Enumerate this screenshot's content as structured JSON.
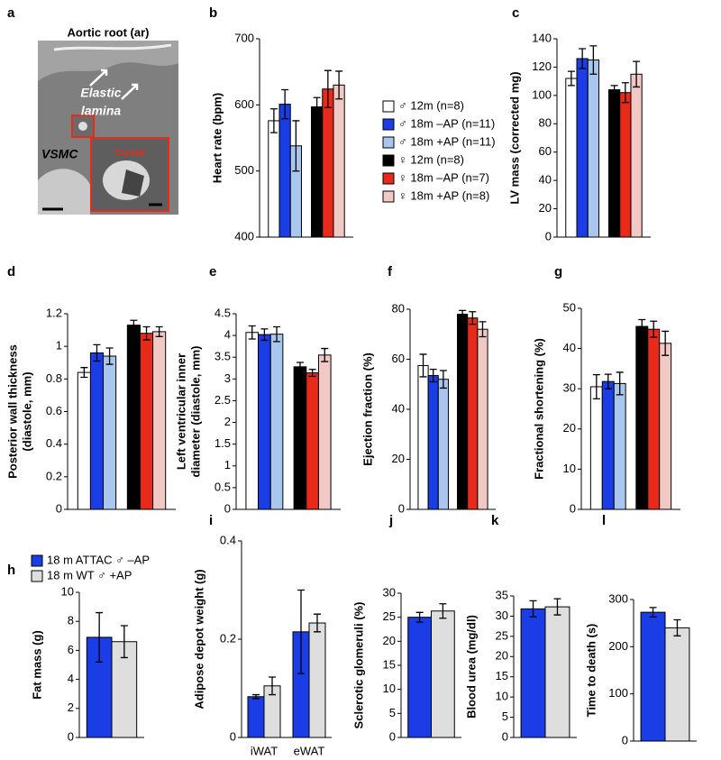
{
  "image_panel": {
    "label": "a",
    "title": "Aortic root (ar)",
    "lamina": [
      "Elastic",
      "lamina"
    ],
    "cell": "VSMC",
    "inset": "Crystal"
  },
  "chart_data": [
    {
      "type": "bar",
      "label": "b",
      "ylabel": "Heart rate (bpm)",
      "ylim": [
        400,
        700
      ],
      "yticks": [
        400,
        500,
        600,
        700
      ],
      "legend": "right",
      "series": [
        {
          "name": "♂ 12m (n=8)",
          "color": "#ffffff",
          "values": [
            576
          ],
          "errors": [
            18
          ]
        },
        {
          "name": "♂ 18m –AP (n=11)",
          "color": "#1a3de6",
          "values": [
            601
          ],
          "errors": [
            22
          ]
        },
        {
          "name": "♂ 18m +AP (n=11)",
          "color": "#a9c6ee",
          "values": [
            538
          ],
          "errors": [
            38
          ]
        },
        {
          "name": "♀ 12m (n=8)",
          "color": "#000000",
          "values": [
            597
          ],
          "errors": [
            14
          ]
        },
        {
          "name": "♀ 18m –AP (n=7)",
          "color": "#e82a1a",
          "values": [
            624
          ],
          "errors": [
            28
          ]
        },
        {
          "name": "♀ 18m +AP (n=8)",
          "color": "#f0c8c4",
          "values": [
            630
          ],
          "errors": [
            21
          ]
        }
      ]
    },
    {
      "type": "bar",
      "label": "c",
      "ylabel": "LV mass (corrected mg)",
      "ylim": [
        0,
        140
      ],
      "yticks": [
        0,
        20,
        40,
        60,
        80,
        100,
        120,
        140
      ],
      "series": [
        {
          "color": "#ffffff",
          "values": [
            112
          ],
          "errors": [
            5
          ]
        },
        {
          "color": "#1a3de6",
          "values": [
            126
          ],
          "errors": [
            7
          ]
        },
        {
          "color": "#a9c6ee",
          "values": [
            125
          ],
          "errors": [
            10
          ]
        },
        {
          "color": "#000000",
          "values": [
            104
          ],
          "errors": [
            3
          ]
        },
        {
          "color": "#e82a1a",
          "values": [
            102
          ],
          "errors": [
            7
          ]
        },
        {
          "color": "#f0c8c4",
          "values": [
            115
          ],
          "errors": [
            9
          ]
        }
      ]
    },
    {
      "type": "bar",
      "label": "d",
      "ylabel": [
        "Posterior wall thickness",
        "(diastole, mm)"
      ],
      "ylim": [
        0,
        1.2
      ],
      "yticks": [
        0,
        0.2,
        0.4,
        0.6,
        0.8,
        1,
        1.2
      ],
      "series": [
        {
          "color": "#ffffff",
          "values": [
            0.84
          ],
          "errors": [
            0.03
          ]
        },
        {
          "color": "#1a3de6",
          "values": [
            0.96
          ],
          "errors": [
            0.05
          ]
        },
        {
          "color": "#a9c6ee",
          "values": [
            0.94
          ],
          "errors": [
            0.05
          ]
        },
        {
          "color": "#000000",
          "values": [
            1.13
          ],
          "errors": [
            0.03
          ]
        },
        {
          "color": "#e82a1a",
          "values": [
            1.08
          ],
          "errors": [
            0.04
          ]
        },
        {
          "color": "#f0c8c4",
          "values": [
            1.09
          ],
          "errors": [
            0.03
          ]
        }
      ]
    },
    {
      "type": "bar",
      "label": "e",
      "ylabel": [
        "Left ventricular inner",
        "diameter (diastole, mm)"
      ],
      "ylim": [
        0,
        4.5
      ],
      "yticks": [
        0,
        0.5,
        1,
        1.5,
        2,
        2.5,
        3,
        3.5,
        4,
        4.5
      ],
      "series": [
        {
          "color": "#ffffff",
          "values": [
            4.07
          ],
          "errors": [
            0.15
          ]
        },
        {
          "color": "#1a3de6",
          "values": [
            4.02
          ],
          "errors": [
            0.13
          ]
        },
        {
          "color": "#a9c6ee",
          "values": [
            4.03
          ],
          "errors": [
            0.17
          ]
        },
        {
          "color": "#000000",
          "values": [
            3.28
          ],
          "errors": [
            0.1
          ]
        },
        {
          "color": "#e82a1a",
          "values": [
            3.14
          ],
          "errors": [
            0.08
          ]
        },
        {
          "color": "#f0c8c4",
          "values": [
            3.55
          ],
          "errors": [
            0.15
          ]
        }
      ]
    },
    {
      "type": "bar",
      "label": "f",
      "ylabel": "Ejection fraction (%)",
      "ylim": [
        0,
        80
      ],
      "yticks": [
        0,
        20,
        40,
        60,
        80
      ],
      "series": [
        {
          "color": "#ffffff",
          "values": [
            57.5
          ],
          "errors": [
            4.5
          ]
        },
        {
          "color": "#1a3de6",
          "values": [
            53.5
          ],
          "errors": [
            2.5
          ]
        },
        {
          "color": "#a9c6ee",
          "values": [
            52
          ],
          "errors": [
            3.5
          ]
        },
        {
          "color": "#000000",
          "values": [
            78
          ],
          "errors": [
            1.5
          ]
        },
        {
          "color": "#e82a1a",
          "values": [
            76.5
          ],
          "errors": [
            2.5
          ]
        },
        {
          "color": "#f0c8c4",
          "values": [
            72
          ],
          "errors": [
            3
          ]
        }
      ]
    },
    {
      "type": "bar",
      "label": "g",
      "ylabel": "Fractional shortening (%)",
      "ylim": [
        0,
        50
      ],
      "yticks": [
        0,
        10,
        20,
        30,
        40,
        50
      ],
      "series": [
        {
          "color": "#ffffff",
          "values": [
            30.5
          ],
          "errors": [
            3
          ]
        },
        {
          "color": "#1a3de6",
          "values": [
            31.8
          ],
          "errors": [
            1.8
          ]
        },
        {
          "color": "#a9c6ee",
          "values": [
            31.3
          ],
          "errors": [
            2.8
          ]
        },
        {
          "color": "#000000",
          "values": [
            45.5
          ],
          "errors": [
            1.7
          ]
        },
        {
          "color": "#e82a1a",
          "values": [
            44.8
          ],
          "errors": [
            2
          ]
        },
        {
          "color": "#f0c8c4",
          "values": [
            41.3
          ],
          "errors": [
            3
          ]
        }
      ]
    },
    {
      "type": "bar",
      "label": "h",
      "ylabel": "Fat mass (g)",
      "ylim": [
        0,
        10
      ],
      "yticks": [
        0,
        2,
        4,
        6,
        8,
        10
      ],
      "legend": "top",
      "series": [
        {
          "name": "18 m ATTAC ♂ –AP",
          "color": "#1a3de6",
          "values": [
            6.9
          ],
          "errors": [
            1.7
          ]
        },
        {
          "name": "18 m WT ♂ +AP",
          "color": "#dedede",
          "values": [
            6.6
          ],
          "errors": [
            1.1
          ]
        }
      ]
    },
    {
      "type": "bar",
      "label": "i",
      "ylabel": "Adipose depot weight (g)",
      "ylim": [
        0,
        0.4
      ],
      "yticks": [
        0,
        0.2,
        0.4
      ],
      "categories": [
        "iWAT",
        "eWAT"
      ],
      "series": [
        {
          "color": "#1a3de6",
          "values": [
            0.083,
            0.215
          ],
          "errors": [
            0.004,
            0.085
          ]
        },
        {
          "color": "#dedede",
          "values": [
            0.105,
            0.233
          ],
          "errors": [
            0.018,
            0.018
          ]
        }
      ]
    },
    {
      "type": "bar",
      "label": "j",
      "ylabel": "Sclerotic glomeruli (%)",
      "ylim": [
        0,
        30
      ],
      "yticks": [
        0,
        5,
        10,
        15,
        20,
        25,
        30
      ],
      "series": [
        {
          "color": "#1a3de6",
          "values": [
            25
          ],
          "errors": [
            1
          ]
        },
        {
          "color": "#dedede",
          "values": [
            26.3
          ],
          "errors": [
            1.5
          ]
        }
      ]
    },
    {
      "type": "bar",
      "label": "k",
      "ylabel": "Blood urea (mg/dl)",
      "ylim": [
        0,
        35
      ],
      "yticks": [
        0,
        5,
        10,
        15,
        20,
        25,
        30,
        35
      ],
      "series": [
        {
          "color": "#1a3de6",
          "values": [
            31.8
          ],
          "errors": [
            2
          ]
        },
        {
          "color": "#dedede",
          "values": [
            32.3
          ],
          "errors": [
            2
          ]
        }
      ]
    },
    {
      "type": "bar",
      "label": "l",
      "ylabel": "Time to death (s)",
      "ylim": [
        0,
        300
      ],
      "yticks": [
        0,
        100,
        200,
        300
      ],
      "series": [
        {
          "color": "#1a3de6",
          "values": [
            273
          ],
          "errors": [
            10
          ]
        },
        {
          "color": "#dedede",
          "values": [
            240
          ],
          "errors": [
            17
          ]
        }
      ]
    }
  ]
}
